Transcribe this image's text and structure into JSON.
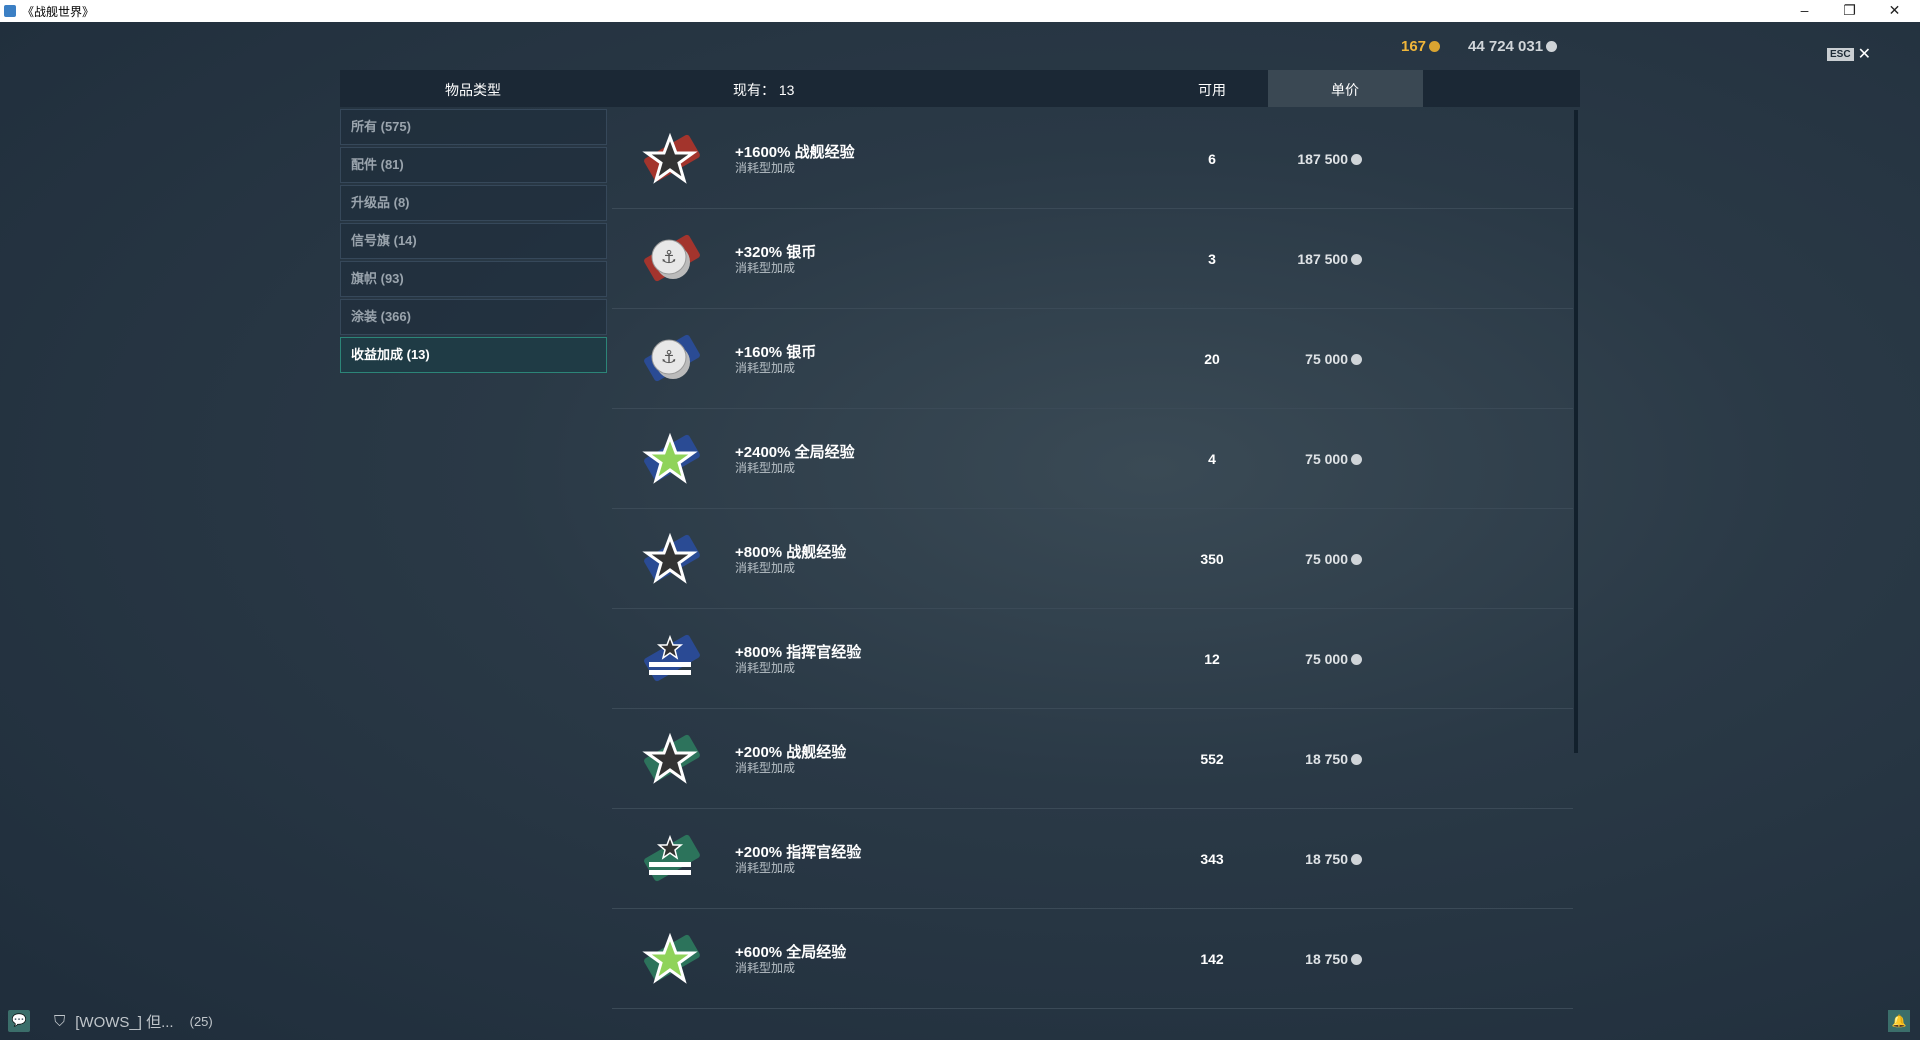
{
  "window": {
    "title": "《战舰世界》",
    "minimize": "–",
    "restore": "❐",
    "close": "✕"
  },
  "currency": {
    "gold": "167",
    "silver": "44 724 031",
    "gold_color": "#f0b63a",
    "silver_color": "#d0d5d9"
  },
  "esc": {
    "key": "ESC",
    "close": "✕"
  },
  "header": {
    "category": "物品类型",
    "owned": "现有： 13",
    "available": "可用",
    "price": "单价"
  },
  "categories": [
    {
      "label": "所有 (575)"
    },
    {
      "label": "配件 (81)"
    },
    {
      "label": "升级品 (8)"
    },
    {
      "label": "信号旗 (14)"
    },
    {
      "label": "旗帜 (93)"
    },
    {
      "label": "涂装 (366)"
    },
    {
      "label": "收益加成 (13)",
      "active": true
    }
  ],
  "items": [
    {
      "name": "+1600% 战舰经验",
      "type": "消耗型加成",
      "count": "6",
      "price": "187 500",
      "icon": "star-icon",
      "color": "#b0342a",
      "star": "#333"
    },
    {
      "name": "+320% 银币",
      "type": "消耗型加成",
      "count": "3",
      "price": "187 500",
      "icon": "silver-coin-icon",
      "color": "#b0342a"
    },
    {
      "name": "+160% 银币",
      "type": "消耗型加成",
      "count": "20",
      "price": "75 000",
      "icon": "silver-coin-icon",
      "color": "#2a4d9c"
    },
    {
      "name": "+2400% 全局经验",
      "type": "消耗型加成",
      "count": "4",
      "price": "75 000",
      "icon": "star-icon",
      "color": "#2a4d9c",
      "star": "#8fd35a"
    },
    {
      "name": "+800% 战舰经验",
      "type": "消耗型加成",
      "count": "350",
      "price": "75 000",
      "icon": "star-icon",
      "color": "#2a4d9c",
      "star": "#333"
    },
    {
      "name": "+800% 指挥官经验",
      "type": "消耗型加成",
      "count": "12",
      "price": "75 000",
      "icon": "commander-icon",
      "color": "#2a4d9c"
    },
    {
      "name": "+200% 战舰经验",
      "type": "消耗型加成",
      "count": "552",
      "price": "18 750",
      "icon": "star-icon",
      "color": "#2d7a5e",
      "star": "#333"
    },
    {
      "name": "+200% 指挥官经验",
      "type": "消耗型加成",
      "count": "343",
      "price": "18 750",
      "icon": "commander-icon",
      "color": "#2d7a5e"
    },
    {
      "name": "+600% 全局经验",
      "type": "消耗型加成",
      "count": "142",
      "price": "18 750",
      "icon": "star-icon",
      "color": "#2d7a5e",
      "star": "#8fd35a"
    }
  ],
  "chat": {
    "label": "[WOWS_]  但...",
    "count": "(25)"
  }
}
